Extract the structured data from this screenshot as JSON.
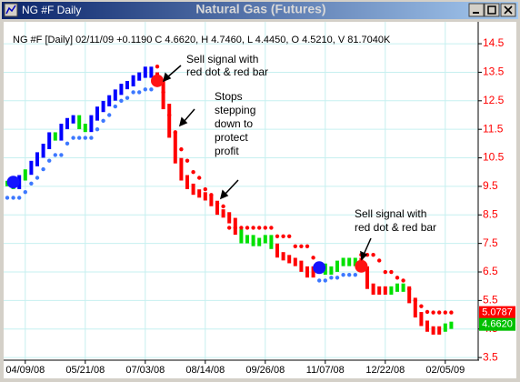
{
  "chart_data": {
    "type": "line",
    "title": "Natural Gas (Futures)",
    "window_label": "NG #F Daily",
    "info": "NG #F [Daily] 02/11/09 +0.1190 C 4.6620, H 4.7460, L 4.4450, O 4.5210, V 81.7040K",
    "categories": [
      null,
      null,
      null,
      "04/09/08",
      null,
      null,
      null,
      null,
      null,
      null,
      null,
      null,
      null,
      "05/21/08",
      null,
      null,
      null,
      null,
      null,
      null,
      null,
      null,
      null,
      "07/03/08",
      null,
      null,
      null,
      null,
      null,
      null,
      null,
      null,
      null,
      "08/14/08",
      null,
      null,
      null,
      null,
      null,
      null,
      null,
      null,
      null,
      "09/26/08",
      null,
      null,
      null,
      null,
      null,
      null,
      null,
      null,
      null,
      "11/07/08",
      null,
      null,
      null,
      null,
      null,
      null,
      null,
      null,
      null,
      "12/22/08",
      null,
      null,
      null,
      null,
      null,
      null,
      null,
      null,
      null,
      "02/05/09",
      null
    ],
    "ylim": [
      3.44,
      15.14
    ],
    "yticks": [
      14.5,
      13.5,
      12.5,
      11.5,
      10.5,
      9.5,
      8.5,
      7.5,
      6.5,
      5.5,
      4.5,
      3.5
    ],
    "grid": true,
    "series": [
      {
        "color": "#0000ff",
        "marker": "bar",
        "values": [
          null,
          null,
          9.8,
          null,
          10.3,
          10.6,
          10.9,
          11.3,
          null,
          11.6,
          11.8,
          11.9,
          null,
          null,
          11.9,
          12.2,
          12.4,
          12.6,
          12.8,
          13.0,
          13.1,
          13.3,
          13.4,
          13.6,
          13.4,
          null,
          null,
          null,
          null,
          null,
          null,
          null,
          null,
          null,
          null,
          null,
          null,
          null,
          null,
          null,
          null,
          null,
          null,
          null,
          null,
          null,
          null,
          null,
          null,
          null,
          null,
          null,
          6.7,
          null,
          null,
          null,
          null,
          null,
          null,
          null,
          null,
          null,
          null,
          null,
          null,
          null,
          null,
          null,
          null,
          null,
          null,
          null,
          null,
          null,
          null
        ]
      },
      {
        "color": "#00e000",
        "marker": "bar",
        "values": [
          9.6,
          9.5,
          null,
          10.0,
          null,
          null,
          null,
          null,
          11.2,
          null,
          null,
          null,
          11.6,
          11.5,
          null,
          null,
          null,
          null,
          null,
          null,
          null,
          null,
          null,
          null,
          null,
          null,
          null,
          null,
          null,
          null,
          null,
          null,
          null,
          null,
          null,
          null,
          null,
          null,
          null,
          7.6,
          7.7,
          7.5,
          7.6,
          7.7,
          7.4,
          null,
          null,
          null,
          null,
          null,
          null,
          null,
          null,
          6.5,
          6.6,
          6.8,
          6.9,
          6.8,
          6.9,
          null,
          null,
          null,
          null,
          null,
          5.9,
          6.0,
          5.9,
          null,
          null,
          null,
          null,
          null,
          null,
          4.6,
          4.662
        ]
      },
      {
        "color": "#ff0000",
        "marker": "bar",
        "values": [
          null,
          null,
          null,
          null,
          null,
          null,
          null,
          null,
          null,
          null,
          null,
          null,
          null,
          null,
          null,
          null,
          null,
          null,
          null,
          null,
          null,
          null,
          null,
          null,
          null,
          13.1,
          12.3,
          11.3,
          10.4,
          9.8,
          9.5,
          9.3,
          9.2,
          9.1,
          8.9,
          8.6,
          8.5,
          8.3,
          7.9,
          null,
          null,
          null,
          null,
          null,
          null,
          7.1,
          7.0,
          6.9,
          6.8,
          6.6,
          6.4,
          6.6,
          null,
          null,
          null,
          null,
          null,
          null,
          null,
          6.6,
          6.0,
          5.8,
          5.9,
          5.8,
          null,
          null,
          null,
          5.5,
          5.0,
          4.7,
          4.5,
          4.4,
          4.5,
          null,
          null
        ]
      },
      {
        "color": "#3c78ff",
        "marker": "dot",
        "values": [
          9.1,
          9.1,
          9.1,
          9.3,
          9.6,
          9.8,
          10.1,
          10.4,
          10.6,
          10.6,
          11.0,
          11.2,
          11.2,
          11.2,
          11.2,
          11.5,
          11.8,
          12.0,
          12.3,
          12.5,
          12.6,
          12.8,
          12.8,
          12.9,
          12.9,
          null,
          null,
          null,
          null,
          null,
          null,
          null,
          null,
          null,
          null,
          null,
          null,
          null,
          null,
          null,
          null,
          null,
          null,
          null,
          null,
          null,
          null,
          null,
          null,
          null,
          null,
          null,
          6.2,
          6.2,
          6.3,
          6.3,
          6.4,
          6.4,
          6.4,
          null,
          null,
          null,
          null,
          null,
          null,
          null,
          null,
          null,
          null,
          null,
          null,
          null,
          null,
          null,
          null
        ]
      },
      {
        "color": "#ff0000",
        "marker": "dot",
        "values": [
          null,
          null,
          null,
          null,
          null,
          null,
          null,
          null,
          null,
          null,
          null,
          null,
          null,
          null,
          null,
          null,
          null,
          null,
          null,
          null,
          null,
          null,
          null,
          null,
          null,
          13.7,
          12.8,
          12.0,
          11.4,
          10.8,
          10.4,
          10.0,
          9.8,
          9.4,
          9.2,
          8.9,
          8.8,
          8.05,
          8.05,
          8.05,
          8.05,
          8.05,
          8.05,
          8.05,
          8.05,
          7.75,
          7.75,
          7.75,
          7.4,
          7.4,
          7.4,
          7.0,
          null,
          null,
          null,
          null,
          null,
          null,
          null,
          7.1,
          7.1,
          7.1,
          6.9,
          6.5,
          6.5,
          6.3,
          6.2,
          5.9,
          5.5,
          5.3,
          5.1,
          5.08,
          5.08,
          5.08,
          5.0787
        ]
      },
      {
        "color": "#1414ff",
        "marker": "signal",
        "values": [
          null,
          9.65,
          null,
          null,
          null,
          null,
          null,
          null,
          null,
          null,
          null,
          null,
          null,
          null,
          null,
          null,
          null,
          null,
          null,
          null,
          null,
          null,
          null,
          null,
          null,
          null,
          null,
          null,
          null,
          null,
          null,
          null,
          null,
          null,
          null,
          null,
          null,
          null,
          null,
          null,
          null,
          null,
          null,
          null,
          null,
          null,
          null,
          null,
          null,
          null,
          null,
          null,
          6.65,
          null,
          null,
          null,
          null,
          null,
          null,
          null,
          null,
          null,
          null,
          null,
          null,
          null,
          null,
          null,
          null,
          null,
          null,
          null,
          null,
          null,
          null
        ]
      },
      {
        "color": "#ff1414",
        "marker": "signal",
        "values": [
          null,
          null,
          null,
          null,
          null,
          null,
          null,
          null,
          null,
          null,
          null,
          null,
          null,
          null,
          null,
          null,
          null,
          null,
          null,
          null,
          null,
          null,
          null,
          null,
          null,
          13.2,
          null,
          null,
          null,
          null,
          null,
          null,
          null,
          null,
          null,
          null,
          null,
          null,
          null,
          null,
          null,
          null,
          null,
          null,
          null,
          null,
          null,
          null,
          null,
          null,
          null,
          null,
          null,
          null,
          null,
          null,
          null,
          null,
          null,
          6.7,
          null,
          null,
          null,
          null,
          null,
          null,
          null,
          null,
          null,
          null,
          null,
          null,
          null,
          null,
          null
        ]
      }
    ],
    "last_values": [
      {
        "value": 5.0787,
        "label": "5.0787",
        "color": "#ff0000"
      },
      {
        "value": 4.662,
        "label": "4.6620",
        "color": "#00c000"
      }
    ],
    "annotations": [
      {
        "lines": [
          "Sell signal with",
          "red dot & red bar"
        ]
      },
      {
        "lines": [
          "Stops",
          "stepping",
          "down to",
          "protect",
          "profit"
        ]
      },
      {
        "lines": [
          "Sell signal with",
          "red dot & red bar"
        ]
      }
    ]
  }
}
